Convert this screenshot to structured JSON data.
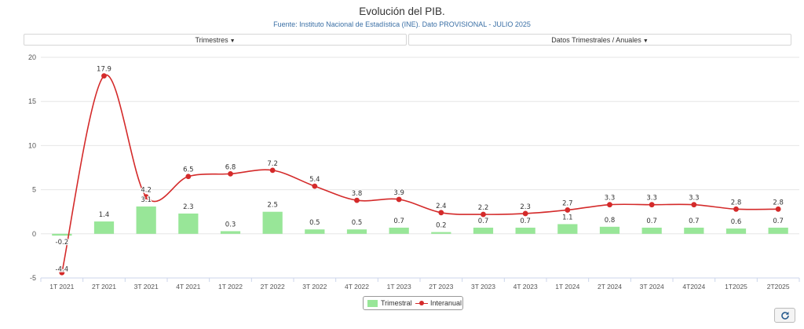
{
  "header": {
    "title": "Evolución del PIB.",
    "subtitle": "Fuente: Instituto Nacional de Estadística (INE). Dato PROVISIONAL - JULIO 2025"
  },
  "controls": {
    "period_selector_label": "Trimestres",
    "data_selector_label": "Datos Trimestrales / Anuales"
  },
  "icons": {
    "dropdown": "caret-down-icon",
    "refresh": "refresh-icon"
  },
  "colors": {
    "bar": "#98e698",
    "line": "#d42a2a",
    "subtitle": "#3a6fa5"
  },
  "chart_data": {
    "type": "bar",
    "title": "Evolución del PIB.",
    "subtitle": "Fuente: Instituto Nacional de Estadística (INE). Dato PROVISIONAL - JULIO 2025",
    "categories": [
      "1T 2021",
      "2T 2021",
      "3T 2021",
      "4T 2021",
      "1T 2022",
      "2T 2022",
      "3T 2022",
      "4T 2022",
      "1T 2023",
      "2T 2023",
      "3T 2023",
      "4T 2023",
      "1T 2024",
      "2T 2024",
      "3T 2024",
      "4T2024",
      "1T2025",
      "2T2025"
    ],
    "series": [
      {
        "name": "Trimestral",
        "type": "bar",
        "values": [
          -0.2,
          1.4,
          3.1,
          2.3,
          0.3,
          2.5,
          0.5,
          0.5,
          0.7,
          0.2,
          0.7,
          0.7,
          1.1,
          0.8,
          0.7,
          0.7,
          0.6,
          0.7
        ]
      },
      {
        "name": "Interanual",
        "type": "line",
        "values": [
          -4.4,
          17.9,
          4.2,
          6.5,
          6.8,
          7.2,
          5.4,
          3.8,
          3.9,
          2.4,
          2.2,
          2.3,
          2.7,
          3.3,
          3.3,
          3.3,
          2.8,
          2.8
        ]
      }
    ],
    "yticks": [
      -5,
      0,
      5,
      10,
      15,
      20
    ],
    "ylim": [
      -5,
      20
    ],
    "grid": true,
    "legend_position": "bottom-center"
  }
}
